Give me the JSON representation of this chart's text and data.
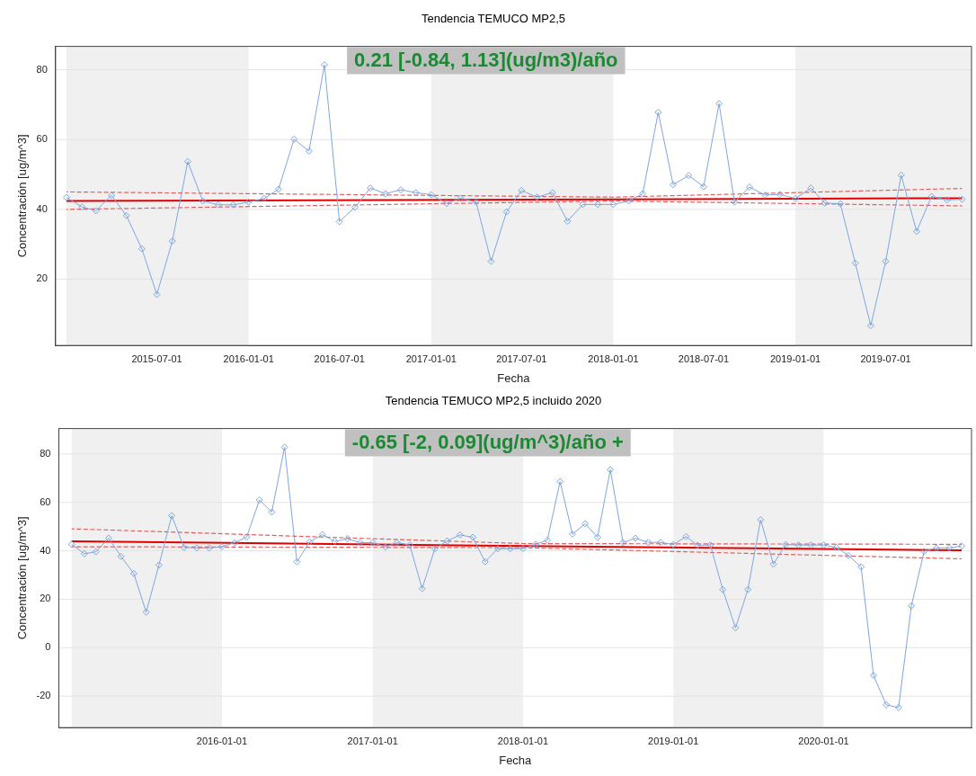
{
  "chart_data": [
    {
      "type": "line",
      "title": "Tendencia TEMUCO MP2,5",
      "xlabel": "Fecha",
      "ylabel": "Concentración [ug/m^3]",
      "xlim": [
        "2014-12-10",
        "2019-12-20"
      ],
      "xticks": [
        "2015-07-01",
        "2016-01-01",
        "2016-07-01",
        "2017-01-01",
        "2017-07-01",
        "2018-01-01",
        "2018-07-01",
        "2019-01-01",
        "2019-07-01"
      ],
      "ylim": [
        1,
        86.7
      ],
      "yticks": [
        20,
        40,
        60,
        80
      ],
      "grid": "y",
      "annotations": [
        "0.21 [-0.84, 1.13](ug/m3)/año"
      ],
      "bands": [
        {
          "axis": "x",
          "from": "2015-01-01",
          "to": "2016-01-01",
          "color": "#f0f0f0"
        },
        {
          "axis": "x",
          "from": "2017-01-01",
          "to": "2018-01-01",
          "color": "#f0f0f0"
        },
        {
          "axis": "x",
          "from": "2019-01-01",
          "to": "2019-12-20",
          "color": "#f0f0f0"
        }
      ],
      "series": [
        {
          "color": "#7ea6e0",
          "marker": "diamond",
          "line_style": "solid",
          "x": [
            "2015-01",
            "2015-02",
            "2015-03",
            "2015-04",
            "2015-05",
            "2015-06",
            "2015-07",
            "2015-08",
            "2015-09",
            "2015-10",
            "2015-11",
            "2015-12",
            "2016-01",
            "2016-02",
            "2016-03",
            "2016-04",
            "2016-05",
            "2016-06",
            "2016-07",
            "2016-08",
            "2016-09",
            "2016-10",
            "2016-11",
            "2016-12",
            "2017-01",
            "2017-02",
            "2017-03",
            "2017-04",
            "2017-05",
            "2017-06",
            "2017-07",
            "2017-08",
            "2017-09",
            "2017-10",
            "2017-11",
            "2017-12",
            "2018-01",
            "2018-02",
            "2018-03",
            "2018-04",
            "2018-05",
            "2018-06",
            "2018-07",
            "2018-08",
            "2018-09",
            "2018-10",
            "2018-11",
            "2018-12",
            "2019-01",
            "2019-02",
            "2019-03",
            "2019-04",
            "2019-05",
            "2019-06",
            "2019-07",
            "2019-08",
            "2019-09",
            "2019-10",
            "2019-11",
            "2019-12"
          ],
          "values": [
            43.4,
            40.7,
            39.6,
            44,
            38.2,
            28.7,
            15.6,
            30.9,
            53.7,
            42.4,
            41.3,
            41.3,
            42.1,
            43.1,
            45.8,
            60.1,
            56.7,
            81.4,
            36.5,
            40.6,
            46.1,
            44.5,
            45.6,
            44.8,
            44.2,
            41.7,
            43.2,
            42.1,
            25.1,
            39.3,
            45.4,
            43.5,
            44.8,
            36.6,
            41.4,
            41.4,
            41.4,
            42.4,
            44.5,
            67.8,
            47.1,
            49.7,
            46.5,
            70.3,
            42.1,
            46.4,
            44.1,
            44.3,
            43.1,
            46.1,
            41.8,
            41.6,
            24.6,
            6.7,
            25.1,
            49.8,
            33.7,
            43.7,
            42.7,
            42.9
          ]
        },
        {
          "color": "#e00000",
          "marker": "none",
          "line_style": "solid",
          "x": [
            "2015-01",
            "2019-12"
          ],
          "values": [
            42.4,
            43.2
          ]
        },
        {
          "color": "#e06060",
          "marker": "none",
          "line_style": "dashed",
          "x": [
            "2015-01",
            "2018-01",
            "2019-12"
          ],
          "values": [
            45,
            43.5,
            46
          ]
        },
        {
          "color": "#e06060",
          "marker": "none",
          "line_style": "dashed",
          "x": [
            "2015-01",
            "2018-01",
            "2019-12"
          ],
          "values": [
            40,
            42.4,
            41
          ]
        }
      ]
    },
    {
      "type": "line",
      "title": "Tendencia TEMUCO MP2,5 incluido 2020",
      "xlabel": "Fecha",
      "ylabel": "Concentración [ug/m^3]",
      "xlim": [
        "2014-12-01",
        "2020-12-25"
      ],
      "xticks": [
        "2016-01-01",
        "2017-01-01",
        "2018-01-01",
        "2019-01-01",
        "2020-01-01"
      ],
      "ylim": [
        -33,
        90.5
      ],
      "yticks": [
        -20,
        0,
        20,
        40,
        60,
        80
      ],
      "grid": "y",
      "annotations": [
        "-0.65 [-2, 0.09](ug/m^3)/año +"
      ],
      "bands": [
        {
          "axis": "x",
          "from": "2015-01-01",
          "to": "2016-01-01",
          "color": "#f0f0f0"
        },
        {
          "axis": "x",
          "from": "2017-01-01",
          "to": "2018-01-01",
          "color": "#f0f0f0"
        },
        {
          "axis": "x",
          "from": "2019-01-01",
          "to": "2020-01-01",
          "color": "#f0f0f0"
        }
      ],
      "series": [
        {
          "color": "#7ea6e0",
          "marker": "diamond",
          "line_style": "solid",
          "x": [
            "2015-01",
            "2015-02",
            "2015-03",
            "2015-04",
            "2015-05",
            "2015-06",
            "2015-07",
            "2015-08",
            "2015-09",
            "2015-10",
            "2015-11",
            "2015-12",
            "2016-01",
            "2016-02",
            "2016-03",
            "2016-04",
            "2016-05",
            "2016-06",
            "2016-07",
            "2016-08",
            "2016-09",
            "2016-10",
            "2016-11",
            "2016-12",
            "2017-01",
            "2017-02",
            "2017-03",
            "2017-04",
            "2017-05",
            "2017-06",
            "2017-07",
            "2017-08",
            "2017-09",
            "2017-10",
            "2017-11",
            "2017-12",
            "2018-01",
            "2018-02",
            "2018-03",
            "2018-04",
            "2018-05",
            "2018-06",
            "2018-07",
            "2018-08",
            "2018-09",
            "2018-10",
            "2018-11",
            "2018-12",
            "2019-01",
            "2019-02",
            "2019-03",
            "2019-04",
            "2019-05",
            "2019-06",
            "2019-07",
            "2019-08",
            "2019-09",
            "2019-10",
            "2019-11",
            "2019-12",
            "2020-01",
            "2020-02",
            "2020-03",
            "2020-04",
            "2020-05",
            "2020-06",
            "2020-07",
            "2020-08",
            "2020-09",
            "2020-10",
            "2020-11",
            "2020-12"
          ],
          "values": [
            42.7,
            38.8,
            39.6,
            45.2,
            37.7,
            30.6,
            14.7,
            34.1,
            54.5,
            41.4,
            41.2,
            41.2,
            41.7,
            43.4,
            45.7,
            61,
            56,
            82.8,
            35.5,
            43.7,
            46.7,
            43.9,
            45,
            43.4,
            43.4,
            41.6,
            43.4,
            42.4,
            24.4,
            40.9,
            44.1,
            46.6,
            45.6,
            35.5,
            40.9,
            40.9,
            40.9,
            42.7,
            44.4,
            68.6,
            46.9,
            51.2,
            45.6,
            73.5,
            43.4,
            45.2,
            43.5,
            43.5,
            42.6,
            45.9,
            42.3,
            42.4,
            24,
            8.2,
            24,
            52.8,
            34.5,
            42.6,
            42.4,
            42.4,
            42.4,
            41.4,
            38.1,
            33.4,
            -11.4,
            -23.6,
            -24.7,
            17.3,
            39.8,
            41.2,
            41.2,
            42
          ]
        },
        {
          "color": "#e00000",
          "marker": "none",
          "line_style": "solid",
          "x": [
            "2015-01",
            "2020-12"
          ],
          "values": [
            43.9,
            40.2
          ]
        },
        {
          "color": "#e06060",
          "marker": "none",
          "line_style": "dashed",
          "x": [
            "2015-01",
            "2018-01",
            "2020-12"
          ],
          "values": [
            49.1,
            43,
            42.7
          ]
        },
        {
          "color": "#e06060",
          "marker": "none",
          "line_style": "dashed",
          "x": [
            "2015-01",
            "2018-01",
            "2020-12"
          ],
          "values": [
            41.7,
            41.3,
            36.7
          ]
        }
      ]
    }
  ]
}
